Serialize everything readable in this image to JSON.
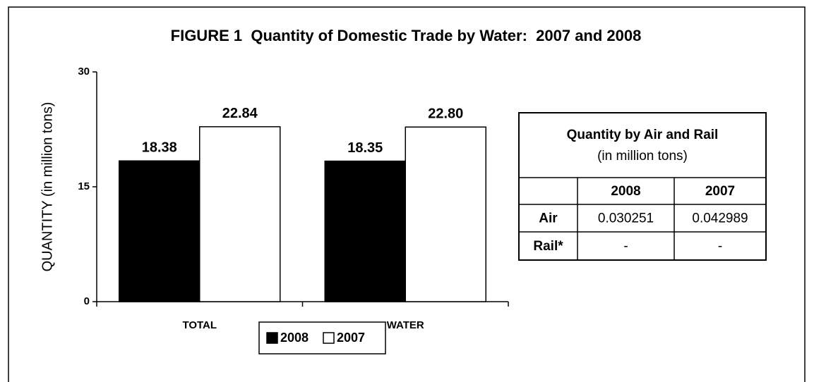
{
  "chart_data": {
    "type": "bar",
    "title": "FIGURE 1  Quantity of Domestic Trade by Water:  2007 and 2008",
    "ylabel": "QUANTITY (in million tons)",
    "categories": [
      "TOTAL",
      "WATER"
    ],
    "series": [
      {
        "name": "2008",
        "color": "#000000",
        "values": [
          18.38,
          18.35
        ],
        "value_labels": [
          "18.38",
          "18.35"
        ]
      },
      {
        "name": "2007",
        "color": "#ffffff",
        "values": [
          22.84,
          22.8
        ],
        "value_labels": [
          "22.84",
          "22.80"
        ]
      }
    ],
    "ylim": [
      0,
      30
    ],
    "yticks": [
      0,
      15,
      30
    ],
    "grid": false,
    "legend": "bottom"
  },
  "table": {
    "title": "Quantity by Air and Rail",
    "subtitle": "(in million tons)",
    "columns": [
      "2008",
      "2007"
    ],
    "rows": [
      {
        "label": "Air",
        "cells": [
          "0.030251",
          "0.042989"
        ]
      },
      {
        "label": "Rail*",
        "cells": [
          "-",
          "-"
        ]
      }
    ]
  }
}
